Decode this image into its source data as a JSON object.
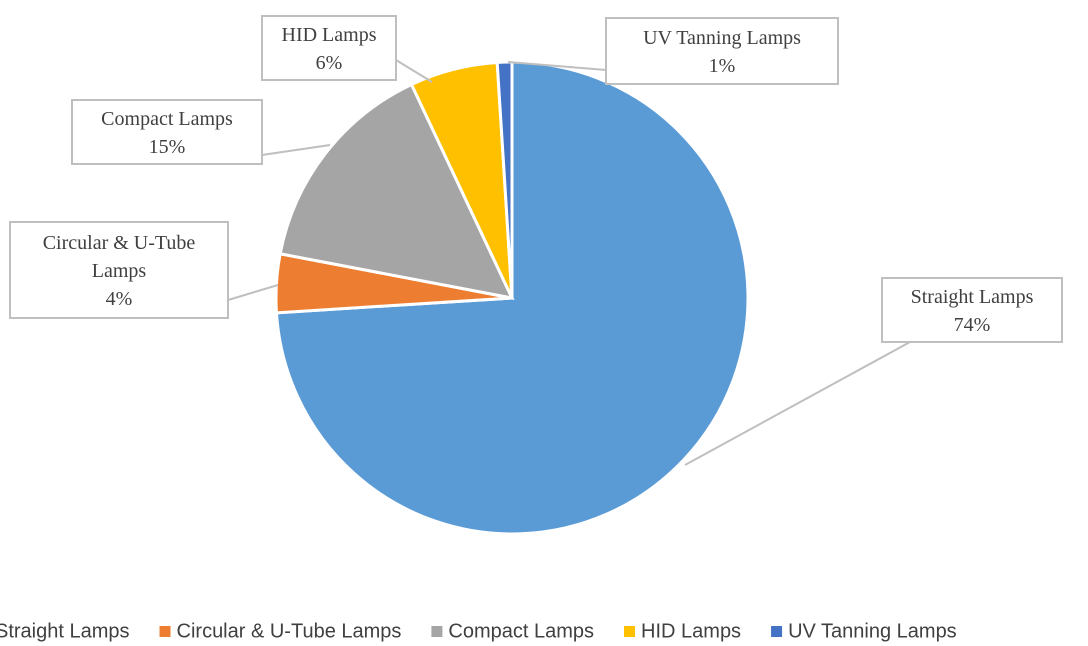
{
  "chart_data": {
    "type": "pie",
    "categories": [
      "Straight Lamps",
      "Circular & U-Tube Lamps",
      "Compact Lamps",
      "HID Lamps",
      "UV Tanning Lamps"
    ],
    "values": [
      74,
      4,
      15,
      6,
      1
    ],
    "value_labels": [
      "74%",
      "4%",
      "15%",
      "6%",
      "1%"
    ],
    "colors": [
      "#5b9bd5",
      "#ed7d31",
      "#a5a5a5",
      "#ffc000",
      "#4472c4"
    ],
    "legend": "bottom"
  }
}
